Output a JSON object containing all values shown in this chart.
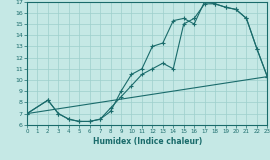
{
  "xlabel": "Humidex (Indice chaleur)",
  "xlim": [
    0,
    23
  ],
  "ylim": [
    6,
    17
  ],
  "xticks": [
    0,
    1,
    2,
    3,
    4,
    5,
    6,
    7,
    8,
    9,
    10,
    11,
    12,
    13,
    14,
    15,
    16,
    17,
    18,
    19,
    20,
    21,
    22,
    23
  ],
  "yticks": [
    6,
    7,
    8,
    9,
    10,
    11,
    12,
    13,
    14,
    15,
    16,
    17
  ],
  "bg_color": "#c5e8e5",
  "line_color": "#1a6b6b",
  "grid_color": "#9ecfcc",
  "line1_x": [
    0,
    2,
    3,
    4,
    5,
    6,
    7,
    8,
    9,
    10,
    11,
    12,
    13,
    14,
    15,
    16,
    17,
    18,
    19,
    20,
    21,
    22,
    23
  ],
  "line1_y": [
    7.0,
    8.2,
    7.0,
    6.5,
    6.3,
    6.3,
    6.5,
    7.2,
    9.0,
    10.5,
    11.0,
    13.0,
    13.3,
    15.3,
    15.5,
    15.0,
    17.0,
    16.8,
    16.5,
    16.3,
    15.5,
    12.8,
    10.3
  ],
  "line2_x": [
    0,
    2,
    3,
    4,
    5,
    6,
    7,
    8,
    9,
    10,
    11,
    12,
    13,
    14,
    15,
    16,
    17,
    18,
    19,
    20,
    21,
    22,
    23
  ],
  "line2_y": [
    7.0,
    8.2,
    7.0,
    6.5,
    6.3,
    6.3,
    6.5,
    7.5,
    8.5,
    9.5,
    10.5,
    11.0,
    11.5,
    11.0,
    15.0,
    15.5,
    16.8,
    16.8,
    16.5,
    16.3,
    15.5,
    12.8,
    10.3
  ],
  "line3_x": [
    0,
    23
  ],
  "line3_y": [
    7.0,
    10.3
  ]
}
